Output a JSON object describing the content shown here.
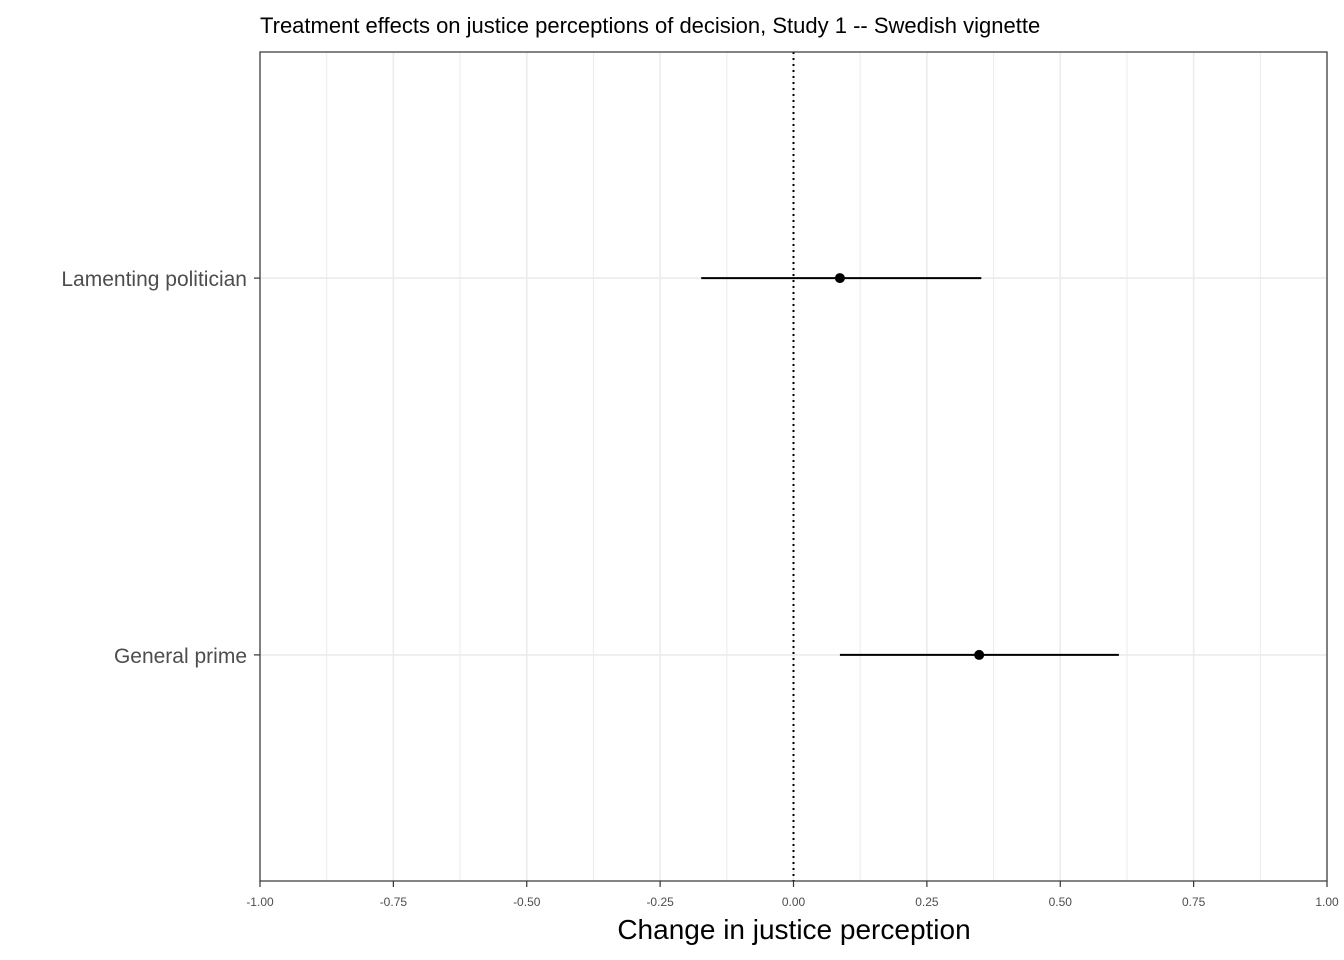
{
  "chart_data": {
    "type": "scatter",
    "title": "Treatment effects on justice perceptions of decision, Study 1 -- Swedish vignette",
    "xlabel": "Change in justice perception",
    "ylabel": "",
    "xlim": [
      -1.0,
      1.0
    ],
    "x_ticks": [
      -1.0,
      -0.75,
      -0.5,
      -0.25,
      0.0,
      0.25,
      0.5,
      0.75,
      1.0
    ],
    "x_tick_labels": [
      "-1.00",
      "-0.75",
      "-0.50",
      "-0.25",
      "0.00",
      "0.25",
      "0.50",
      "0.75",
      "1.00"
    ],
    "reference_line": 0.0,
    "grid": true,
    "categories": [
      "Lamenting politician",
      "General prime"
    ],
    "points": [
      {
        "label": "Lamenting politician",
        "estimate": 0.087,
        "ci_low": -0.173,
        "ci_high": 0.352
      },
      {
        "label": "General prime",
        "estimate": 0.348,
        "ci_low": 0.087,
        "ci_high": 0.61
      }
    ],
    "colors": {
      "point": "#000000",
      "grid": "#ebebeb",
      "axis": "#333333"
    }
  }
}
